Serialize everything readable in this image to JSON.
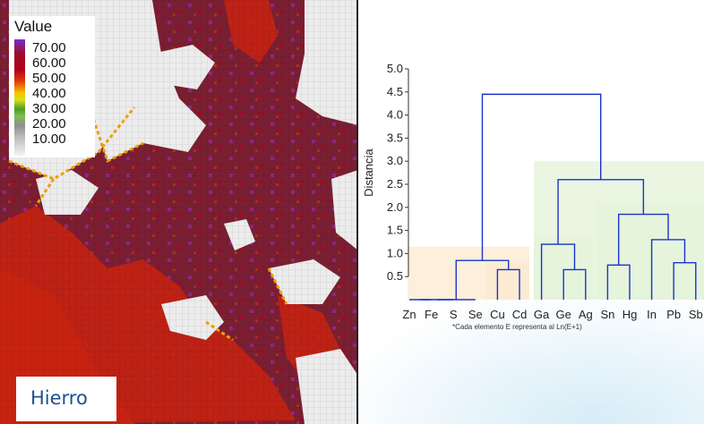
{
  "map": {
    "legend_title": "Value",
    "legend_values": [
      "70.00",
      "60.00",
      "50.00",
      "40.00",
      "30.00",
      "20.00",
      "10.00"
    ],
    "element_label": "Hierro",
    "colors": {
      "high": "#7a1f33",
      "very_high": "#8b1e8f",
      "mid": "#c9230f",
      "warm": "#f0a20a",
      "low": "#ececec",
      "accent": "#1f4f8f"
    }
  },
  "chart_data": {
    "type": "dendrogram",
    "leaves": [
      "Zn",
      "Fe",
      "S",
      "Se",
      "Cu",
      "Cd",
      "Ga",
      "Ge",
      "Ag",
      "Sn",
      "Hg",
      "In",
      "Pb",
      "Sb"
    ],
    "ylabel": "Distancia",
    "yticks": [
      "0.5",
      "1.0",
      "1.5",
      "2.0",
      "2.5",
      "3.0",
      "3.5",
      "4.0",
      "4.5",
      "5.0"
    ],
    "ylim": [
      0,
      5.0
    ],
    "footnote": "*Cada elemento E representa al Ln(E+1)",
    "merges": [
      {
        "left": "Zn",
        "right": "Fe",
        "height": 0.0
      },
      {
        "left": "Zn+Fe",
        "right": "S",
        "height": 0.0
      },
      {
        "left": "Zn+Fe+S",
        "right": "Se",
        "height": 0.0
      },
      {
        "left": "Cu",
        "right": "Cd",
        "height": 0.65
      },
      {
        "left": "Ge",
        "right": "Ag",
        "height": 0.65
      },
      {
        "left": "Sn",
        "right": "Hg",
        "height": 0.75
      },
      {
        "left": "Pb",
        "right": "Sb",
        "height": 0.8
      },
      {
        "left": "In",
        "right": "Pb+Sb",
        "height": 1.3
      },
      {
        "left": "Zn..Se",
        "right": "Cu+Cd",
        "height": 0.85
      },
      {
        "left": "Ga",
        "right": "Ge+Ag",
        "height": 1.2
      },
      {
        "left": "Sn+Hg",
        "right": "In+Pb+Sb",
        "height": 1.85
      },
      {
        "left": "Ga+Ge+Ag",
        "right": "Sn..Sb",
        "height": 2.6
      },
      {
        "left": "Zn..Cd",
        "right": "Ga..Sb",
        "height": 4.45
      }
    ],
    "clusters": [
      {
        "members": [
          "Zn",
          "Fe",
          "S",
          "Se",
          "Cu",
          "Cd"
        ],
        "color": "#fbe9cf"
      },
      {
        "members": [
          "Ga",
          "Ge",
          "Ag",
          "Sn",
          "Hg",
          "In",
          "Pb",
          "Sb"
        ],
        "color": "#e3f3d8"
      }
    ],
    "line_color": "#1a33cc",
    "grid": false
  }
}
